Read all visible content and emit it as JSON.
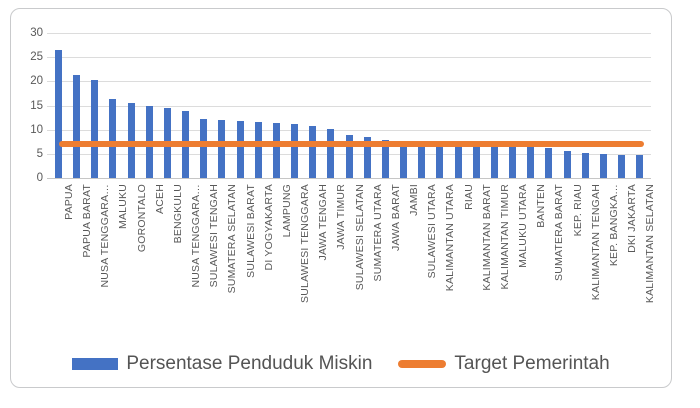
{
  "chart_data": {
    "type": "bar",
    "title": "",
    "categories": [
      "PAPUA",
      "PAPUA BARAT",
      "NUSA TENGGARA…",
      "MALUKU",
      "GORONTALO",
      "ACEH",
      "BENGKULU",
      "NUSA TENGGARA…",
      "SULAWESI TENGAH",
      "SUMATERA SELATAN",
      "SULAWESI BARAT",
      "DI YOGYAKARTA",
      "LAMPUNG",
      "SULAWESI TENGGARA",
      "JAWA TENGAH",
      "JAWA TIMUR",
      "SULAWESI SELATAN",
      "SUMATERA UTARA",
      "JAWA BARAT",
      "JAMBI",
      "SULAWESI UTARA",
      "KALIMANTAN UTARA",
      "RIAU",
      "KALIMANTAN BARAT",
      "KALIMANTAN TIMUR",
      "MALUKU UTARA",
      "BANTEN",
      "SUMATERA BARAT",
      "KEP. RIAU",
      "KALIMANTAN TENGAH",
      "KEP. BANGKA…",
      "DKI JAKARTA",
      "KALIMANTAN SELATAN"
    ],
    "series": [
      {
        "name": "Persentase Penduduk Miskin",
        "type": "bar",
        "color": "#4472C4",
        "values": [
          26.6,
          21.4,
          20.2,
          16.3,
          15.5,
          14.9,
          14.4,
          13.8,
          12.3,
          12.0,
          11.9,
          11.5,
          11.4,
          11.2,
          10.8,
          10.2,
          8.8,
          8.4,
          7.9,
          7.5,
          7.4,
          7.2,
          7.1,
          7.0,
          6.9,
          6.5,
          6.4,
          6.3,
          5.6,
          5.2,
          4.9,
          4.8,
          4.7
        ]
      },
      {
        "name": "Target Pemerintah",
        "type": "line",
        "color": "#ED7D31",
        "value": 7
      }
    ],
    "ylim": [
      0,
      30
    ],
    "ytick_step": 5,
    "y_ticks": [
      "0",
      "5",
      "10",
      "15",
      "20",
      "25",
      "30"
    ],
    "grid": true,
    "legend_position": "bottom"
  },
  "legend": {
    "items": [
      {
        "label": "Persentase Penduduk Miskin",
        "swatch": "bar"
      },
      {
        "label": "Target Pemerintah",
        "swatch": "line"
      }
    ]
  },
  "colors": {
    "bar": "#4472C4",
    "target_line": "#ED7D31",
    "grid": "#DCDCDC",
    "axis_text": "#595959",
    "frame_border": "#C9CACC"
  }
}
